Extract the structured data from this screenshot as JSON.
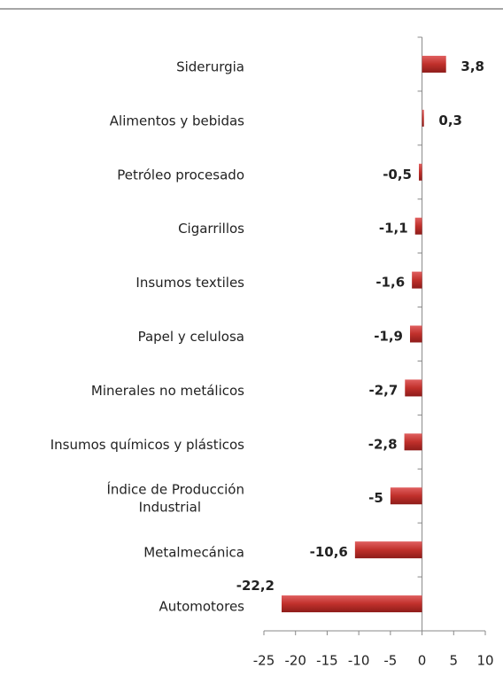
{
  "chart_data": {
    "type": "bar",
    "orientation": "horizontal",
    "categories": [
      "Siderurgia",
      "Alimentos y bebidas",
      "Petróleo procesado",
      "Cigarrillos",
      "Insumos textiles",
      "Papel y celulosa",
      "Minerales no metálicos",
      "Insumos químicos y plásticos",
      "Índice de Producción\nIndustrial",
      "Metalmecánica",
      "Automotores"
    ],
    "values": [
      3.8,
      0.3,
      -0.5,
      -1.1,
      -1.6,
      -1.9,
      -2.7,
      -2.8,
      -5,
      -10.6,
      -22.2
    ],
    "value_labels": [
      "3,8",
      "0,3",
      "-0,5",
      "-1,1",
      "-1,6",
      "-1,9",
      "-2,7",
      "-2,8",
      "-5",
      "-10,6",
      "-22,2"
    ],
    "color": "#c0392b",
    "xlim": [
      -25,
      10
    ],
    "xticks": [
      -25,
      -20,
      -15,
      -10,
      -5,
      0,
      5,
      10
    ]
  }
}
